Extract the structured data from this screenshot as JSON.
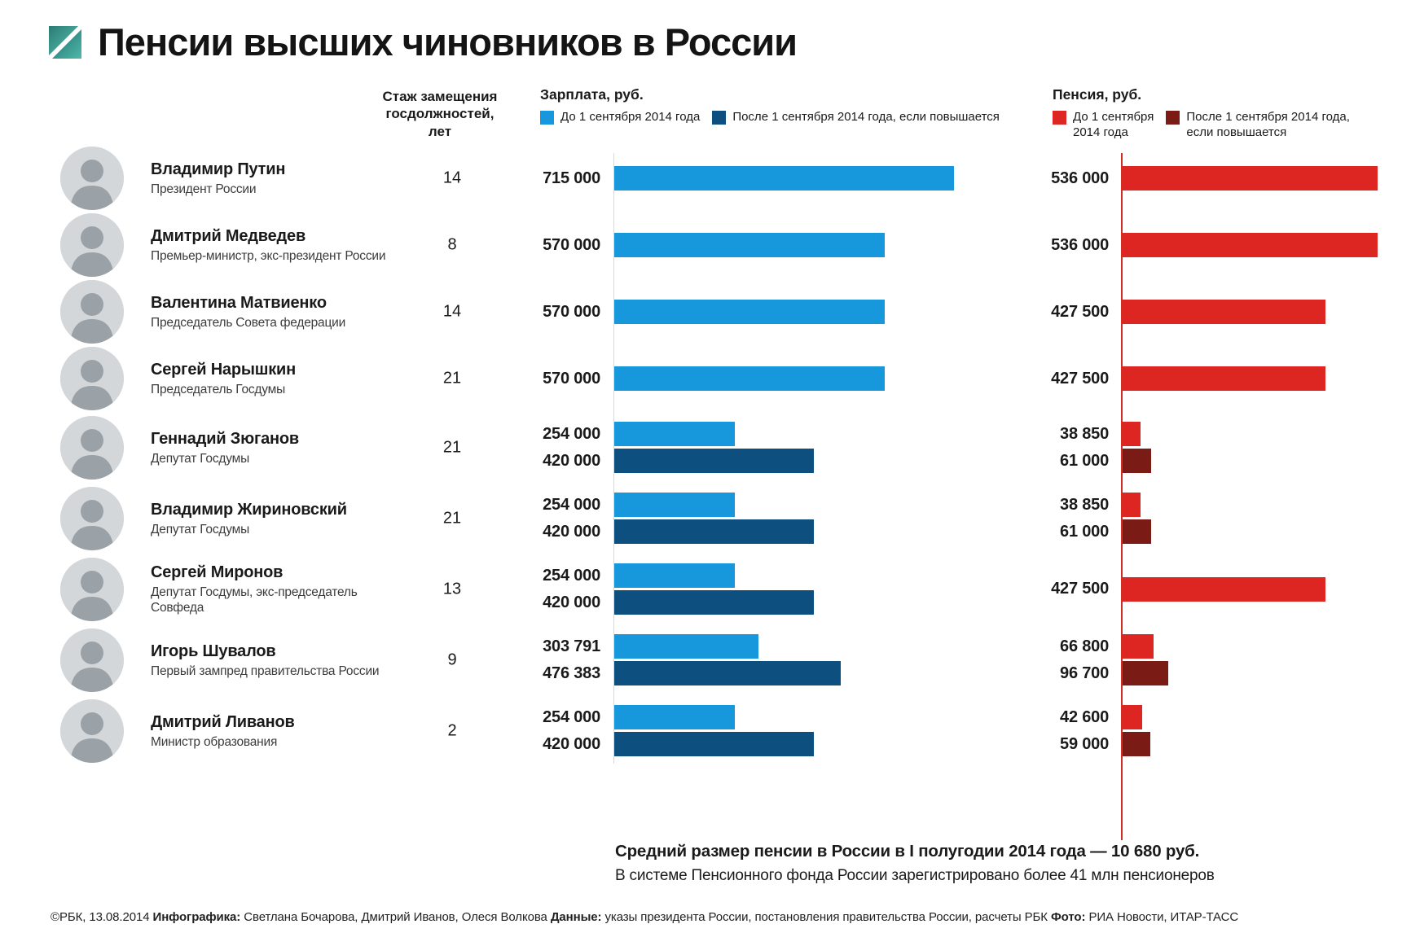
{
  "title": "Пенсии высших чиновников в России",
  "columns": {
    "experience_header": "Стаж замещения\nгосдолжностей,\nлет",
    "salary_header": "Зарплата, руб.",
    "pension_header": "Пенсия, руб."
  },
  "legend": {
    "salary": [
      {
        "label": "До 1 сентября 2014 года",
        "color": "#1798dc",
        "multiline": false
      },
      {
        "label": "После 1 сентября 2014 года, если повышается",
        "color": "#0d4f7e",
        "multiline": false
      }
    ],
    "pension": [
      {
        "label": "До 1 сентября\n2014 года",
        "color": "#dd2521",
        "multiline": true
      },
      {
        "label": "После 1 сентября 2014 года,\nесли повышается",
        "color": "#7a1b15",
        "multiline": true
      }
    ]
  },
  "colors": {
    "salary_before": "#1798dc",
    "salary_after": "#0d4f7e",
    "pension_before": "#dd2521",
    "pension_after": "#7a1b15",
    "pension_axis_line": "#cf2e24",
    "salary_axis_line": "#d9d9d9",
    "logo_teal_light": "#53bcab",
    "logo_teal_dark": "#1f6d70"
  },
  "chart_data": {
    "type": "bar",
    "orientation": "horizontal",
    "unit": "руб.",
    "series_periods": [
      "До 1 сентября 2014 года",
      "После 1 сентября 2014 года, если повышается"
    ],
    "value_range": [
      0,
      715000
    ],
    "officials": [
      {
        "name": "Владимир Путин",
        "position": "Президент России",
        "experience_years": "14",
        "salary": [
          {
            "period": "before",
            "value": 715000,
            "label": "715 000"
          }
        ],
        "pension": [
          {
            "period": "before",
            "value": 536000,
            "label": "536 000"
          }
        ]
      },
      {
        "name": "Дмитрий Медведев",
        "position": "Премьер-министр, экс-президент России",
        "experience_years": "8",
        "salary": [
          {
            "period": "before",
            "value": 570000,
            "label": "570 000"
          }
        ],
        "pension": [
          {
            "period": "before",
            "value": 536000,
            "label": "536 000"
          }
        ]
      },
      {
        "name": "Валентина Матвиенко",
        "position": "Председатель Совета федерации",
        "experience_years": "14",
        "salary": [
          {
            "period": "before",
            "value": 570000,
            "label": "570 000"
          }
        ],
        "pension": [
          {
            "period": "before",
            "value": 427500,
            "label": "427 500"
          }
        ]
      },
      {
        "name": "Сергей Нарышкин",
        "position": "Председатель Госдумы",
        "experience_years": "21",
        "salary": [
          {
            "period": "before",
            "value": 570000,
            "label": "570 000"
          }
        ],
        "pension": [
          {
            "period": "before",
            "value": 427500,
            "label": "427 500"
          }
        ]
      },
      {
        "name": "Геннадий Зюганов",
        "position": "Депутат Госдумы",
        "experience_years": "21",
        "salary": [
          {
            "period": "before",
            "value": 254000,
            "label": "254 000"
          },
          {
            "period": "after",
            "value": 420000,
            "label": "420 000"
          }
        ],
        "pension": [
          {
            "period": "before",
            "value": 38850,
            "label": "38 850"
          },
          {
            "period": "after",
            "value": 61000,
            "label": "61 000"
          }
        ]
      },
      {
        "name": "Владимир Жириновский",
        "position": "Депутат Госдумы",
        "experience_years": "21",
        "salary": [
          {
            "period": "before",
            "value": 254000,
            "label": "254 000"
          },
          {
            "period": "after",
            "value": 420000,
            "label": "420 000"
          }
        ],
        "pension": [
          {
            "period": "before",
            "value": 38850,
            "label": "38 850"
          },
          {
            "period": "after",
            "value": 61000,
            "label": "61 000"
          }
        ]
      },
      {
        "name": "Сергей Миронов",
        "position": "Депутат Госдумы, экс-председатель Совфеда",
        "experience_years": "13",
        "salary": [
          {
            "period": "before",
            "value": 254000,
            "label": "254 000"
          },
          {
            "period": "after",
            "value": 420000,
            "label": "420 000"
          }
        ],
        "pension": [
          {
            "period": "before",
            "value": 427500,
            "label": "427 500"
          }
        ]
      },
      {
        "name": "Игорь Шувалов",
        "position": "Первый зампред правительства России",
        "experience_years": "9",
        "salary": [
          {
            "period": "before",
            "value": 303791,
            "label": "303 791"
          },
          {
            "period": "after",
            "value": 476383,
            "label": "476 383"
          }
        ],
        "pension": [
          {
            "period": "before",
            "value": 66800,
            "label": "66 800"
          },
          {
            "period": "after",
            "value": 96700,
            "label": "96 700"
          }
        ]
      },
      {
        "name": "Дмитрий Ливанов",
        "position": "Министр образования",
        "experience_years": "2",
        "salary": [
          {
            "period": "before",
            "value": 254000,
            "label": "254 000"
          },
          {
            "period": "after",
            "value": 420000,
            "label": "420 000"
          }
        ],
        "pension": [
          {
            "period": "before",
            "value": 42600,
            "label": "42 600"
          },
          {
            "period": "after",
            "value": 59000,
            "label": "59 000"
          }
        ]
      }
    ]
  },
  "footnote": {
    "line1": "Средний размер пенсии в России в I полугодии 2014 года — 10 680 руб.",
    "line2": "В системе Пенсионного фонда России зарегистрировано более 41 млн пенсионеров"
  },
  "credits": {
    "parts": [
      {
        "text": "©РБК, 13.08.2014 ",
        "bold": false
      },
      {
        "text": "Инфографика: ",
        "bold": true
      },
      {
        "text": "Светлана Бочарова, Дмитрий Иванов, Олеся Волкова ",
        "bold": false
      },
      {
        "text": "Данные: ",
        "bold": true
      },
      {
        "text": "указы президента России, постановления правительства России, расчеты РБК ",
        "bold": false
      },
      {
        "text": "Фото: ",
        "bold": true
      },
      {
        "text": "РИА Новости, ИТАР-ТАСС",
        "bold": false
      }
    ]
  }
}
